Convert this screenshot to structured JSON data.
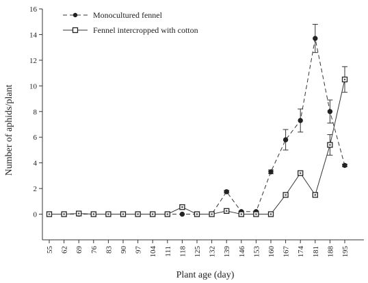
{
  "chart_data": {
    "type": "line",
    "xlabel": "Plant age (day)",
    "ylabel": "Number of aphids/plant",
    "x": [
      "55",
      "62",
      "69",
      "76",
      "83",
      "90",
      "97",
      "104",
      "111",
      "118",
      "125",
      "132",
      "139",
      "146",
      "153",
      "160",
      "167",
      "174",
      "181",
      "188",
      "195"
    ],
    "ylim": [
      -2,
      16
    ],
    "yticks": [
      0,
      2,
      4,
      6,
      8,
      10,
      12,
      14,
      16
    ],
    "grid": false,
    "legend_position": "top-left",
    "series": [
      {
        "name": "Monocultured fennel",
        "marker": "filled-circle",
        "line_style": "dashed",
        "color": "#333333",
        "values": [
          0,
          0,
          0,
          0,
          0,
          0,
          0,
          0,
          0,
          0,
          0,
          0,
          1.75,
          0.2,
          0.2,
          3.3,
          5.8,
          7.3,
          13.7,
          8.0,
          3.8
        ],
        "errors": [
          0,
          0,
          0,
          0,
          0,
          0,
          0,
          0,
          0,
          0,
          0,
          0,
          0.1,
          0.05,
          0.05,
          0.15,
          0.8,
          0.9,
          1.1,
          0.9,
          0.1
        ]
      },
      {
        "name": "Fennel intercropped with cotton",
        "marker": "hollow-square",
        "line_style": "solid",
        "color": "#333333",
        "values": [
          0,
          0,
          0.05,
          0,
          0,
          0,
          0,
          0,
          0,
          0.55,
          0,
          0,
          0.25,
          0,
          0,
          0,
          1.5,
          3.2,
          1.5,
          5.4,
          10.5
        ],
        "errors": [
          0,
          0,
          0,
          0,
          0,
          0,
          0,
          0,
          0,
          0,
          0,
          0,
          0,
          0,
          0,
          0,
          0,
          0.1,
          0,
          0.8,
          1.0
        ]
      }
    ]
  }
}
